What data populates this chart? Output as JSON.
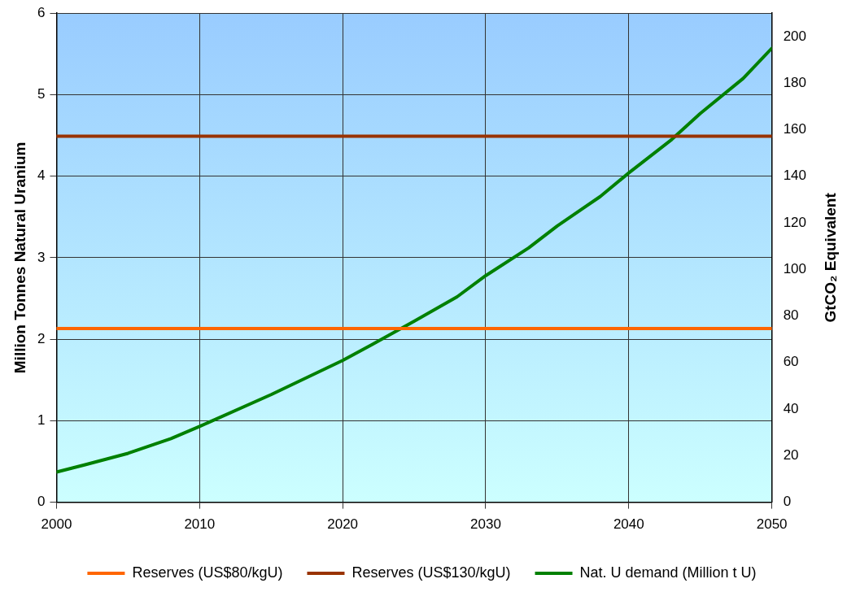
{
  "chart_data": {
    "type": "line",
    "ylabel": "Million Tonnes Natural Uranium",
    "y2label": "GtCO₂ Equivalent",
    "xlim": [
      2000,
      2050
    ],
    "xticks": [
      2000,
      2010,
      2020,
      2030,
      2040,
      2050
    ],
    "ylim": [
      0,
      6
    ],
    "yticks": [
      0,
      1,
      2,
      3,
      4,
      5,
      6
    ],
    "y2lim": [
      0,
      210
    ],
    "y2ticks": [
      0,
      20,
      40,
      60,
      80,
      100,
      120,
      140,
      160,
      180,
      200
    ],
    "grid": true,
    "legend": "bottom",
    "marker": "none",
    "line_style": "solid",
    "series": [
      {
        "name": "Reserves (US$80/kgU)",
        "color": "#ff6600",
        "x": [
          2000,
          2050
        ],
        "values": [
          2.13,
          2.13
        ]
      },
      {
        "name": "Reserves (US$130/kgU)",
        "color": "#993300",
        "x": [
          2000,
          2050
        ],
        "values": [
          4.49,
          4.49
        ]
      },
      {
        "name": "Nat. U demand (Million t U)",
        "color": "#008000",
        "x": [
          2000,
          2002,
          2005,
          2008,
          2010,
          2015,
          2020,
          2022,
          2025,
          2028,
          2030,
          2033,
          2035,
          2038,
          2040,
          2043,
          2045,
          2048,
          2050
        ],
        "values": [
          0.37,
          0.46,
          0.6,
          0.78,
          0.93,
          1.32,
          1.74,
          1.93,
          2.22,
          2.52,
          2.78,
          3.12,
          3.39,
          3.75,
          4.04,
          4.45,
          4.77,
          5.2,
          5.57
        ]
      }
    ]
  }
}
